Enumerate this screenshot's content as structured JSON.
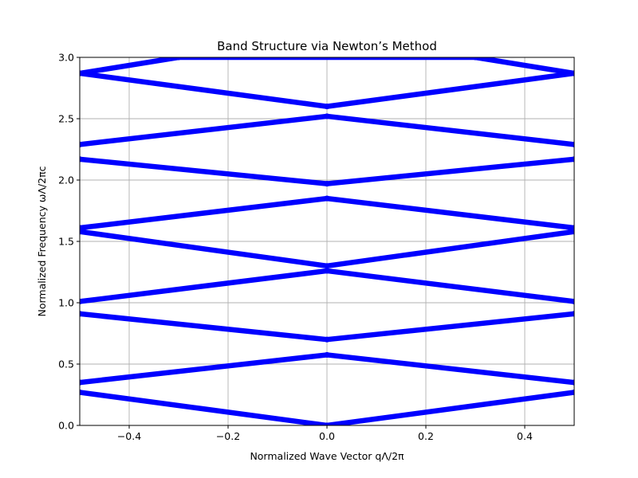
{
  "chart_data": {
    "type": "scatter",
    "title": "Band Structure via Newton’s Method",
    "xlabel": "Normalized Wave Vector qΛ/2π",
    "ylabel": "Normalized Frequency ωΛ/2πc",
    "xlim": [
      -0.5,
      0.5
    ],
    "ylim": [
      0.0,
      3.0
    ],
    "x_ticks": [
      -0.4,
      -0.2,
      0.0,
      0.2,
      0.4
    ],
    "x_tick_labels": [
      "−0.4",
      "−0.2",
      "0.0",
      "0.2",
      "0.4"
    ],
    "y_ticks": [
      0.0,
      0.5,
      1.0,
      1.5,
      2.0,
      2.5,
      3.0
    ],
    "y_tick_labels": [
      "0.0",
      "0.5",
      "1.0",
      "1.5",
      "2.0",
      "2.5",
      "3.0"
    ],
    "grid": true,
    "marker_color": "#0000ff",
    "series": [
      {
        "values": [
          [
            0.0,
            0.0
          ],
          [
            0.5,
            0.27
          ],
          [
            -0.5,
            0.27
          ]
        ]
      },
      {
        "values": [
          [
            0.0,
            0.575
          ],
          [
            0.5,
            0.35
          ],
          [
            -0.5,
            0.35
          ]
        ]
      },
      {
        "values": [
          [
            0.0,
            0.7
          ],
          [
            0.5,
            0.91
          ],
          [
            -0.5,
            0.91
          ]
        ]
      },
      {
        "values": [
          [
            0.0,
            1.26
          ],
          [
            0.5,
            1.01
          ],
          [
            -0.5,
            1.01
          ]
        ]
      },
      {
        "values": [
          [
            0.0,
            1.3
          ],
          [
            0.5,
            1.58
          ],
          [
            -0.5,
            1.58
          ]
        ]
      },
      {
        "values": [
          [
            0.0,
            1.85
          ],
          [
            0.5,
            1.61
          ],
          [
            -0.5,
            1.61
          ]
        ]
      },
      {
        "values": [
          [
            0.0,
            1.97
          ],
          [
            0.5,
            2.17
          ],
          [
            -0.5,
            2.17
          ]
        ]
      },
      {
        "values": [
          [
            0.0,
            2.52
          ],
          [
            0.5,
            2.29
          ],
          [
            -0.5,
            2.29
          ]
        ]
      },
      {
        "values": [
          [
            0.0,
            2.6
          ],
          [
            0.5,
            2.87
          ],
          [
            -0.5,
            2.87
          ]
        ]
      },
      {
        "values": [
          [
            0.3,
            3.0
          ],
          [
            0.5,
            2.87
          ],
          [
            -0.3,
            3.0
          ],
          [
            -0.5,
            2.87
          ]
        ]
      }
    ]
  }
}
